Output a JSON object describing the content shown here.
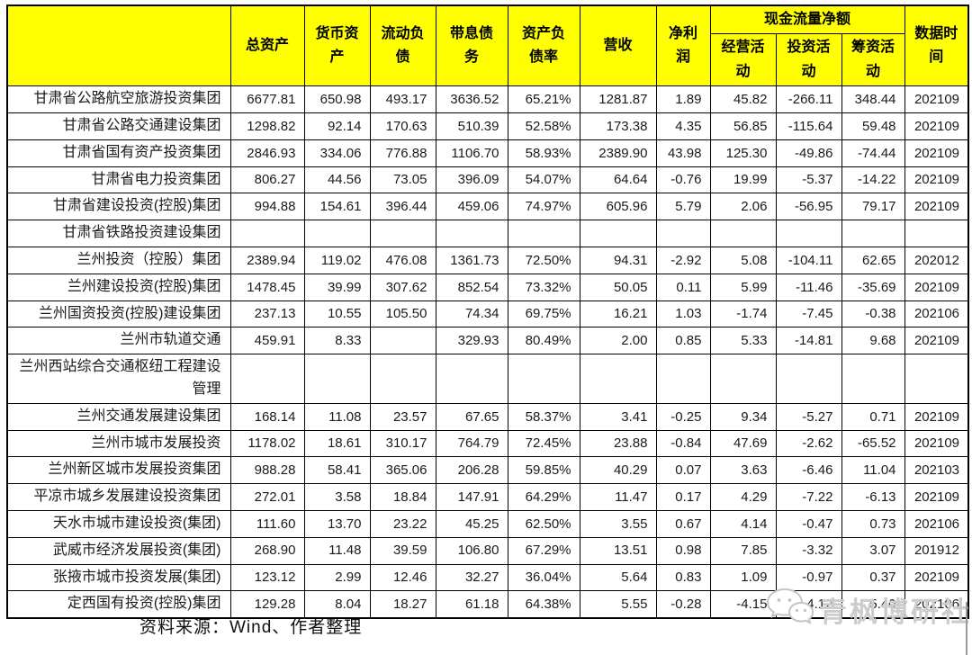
{
  "table": {
    "header": {
      "corner": "",
      "cols": [
        "总资产",
        "货币资产",
        "流动负债",
        "带息债务",
        "资产负债率",
        "营收",
        "净利润"
      ],
      "cash_flow_group": "现金流量净额",
      "cash_flow_cols": [
        "经营活动",
        "投资活动",
        "筹资活动"
      ],
      "date_col": "数据时间"
    },
    "rows": [
      {
        "name": "甘肃省公路航空旅游投资集团",
        "values": [
          "6677.81",
          "650.98",
          "493.17",
          "3636.52",
          "65.21%",
          "1281.87",
          "1.89",
          "45.82",
          "-266.11",
          "348.44",
          "202109"
        ]
      },
      {
        "name": "甘肃省公路交通建设集团",
        "values": [
          "1298.82",
          "92.14",
          "170.63",
          "510.39",
          "52.58%",
          "173.38",
          "4.35",
          "56.85",
          "-115.64",
          "59.48",
          "202109"
        ]
      },
      {
        "name": "甘肃省国有资产投资集团",
        "values": [
          "2846.93",
          "334.06",
          "776.88",
          "1106.70",
          "58.93%",
          "2389.90",
          "43.98",
          "125.30",
          "-49.86",
          "-74.44",
          "202109"
        ]
      },
      {
        "name": "甘肃省电力投资集团",
        "values": [
          "806.27",
          "44.56",
          "73.05",
          "396.09",
          "54.07%",
          "64.64",
          "-0.76",
          "19.99",
          "-5.37",
          "-14.22",
          "202109"
        ]
      },
      {
        "name": "甘肃省建设投资(控股)集团",
        "values": [
          "994.88",
          "154.61",
          "396.44",
          "459.06",
          "74.97%",
          "605.96",
          "5.79",
          "2.06",
          "-56.95",
          "79.17",
          "202109"
        ]
      },
      {
        "name": "甘肃省铁路投资建设集团",
        "values": [
          "",
          "",
          "",
          "",
          "",
          "",
          "",
          "",
          "",
          "",
          ""
        ]
      },
      {
        "name": "兰州投资（控股）集团",
        "values": [
          "2389.94",
          "119.02",
          "476.08",
          "1361.73",
          "72.50%",
          "94.31",
          "-2.92",
          "5.08",
          "-104.11",
          "62.65",
          "202012"
        ]
      },
      {
        "name": "兰州建设投资(控股)集团",
        "values": [
          "1478.45",
          "39.99",
          "307.62",
          "852.54",
          "73.32%",
          "50.05",
          "0.11",
          "5.99",
          "-11.46",
          "-35.69",
          "202109"
        ]
      },
      {
        "name": "兰州国资投资(控股)建设集团",
        "values": [
          "237.13",
          "10.55",
          "105.50",
          "74.34",
          "69.75%",
          "16.21",
          "1.03",
          "-1.74",
          "-7.45",
          "-0.38",
          "202106"
        ]
      },
      {
        "name": "兰州市轨道交通",
        "values": [
          "459.91",
          "8.33",
          "",
          "329.93",
          "80.49%",
          "2.00",
          "0.85",
          "5.33",
          "-14.81",
          "9.68",
          "202109"
        ]
      },
      {
        "name": "兰州西站综合交通枢纽工程建设管理",
        "values": [
          "",
          "",
          "",
          "",
          "",
          "",
          "",
          "",
          "",
          "",
          ""
        ]
      },
      {
        "name": "兰州交通发展建设集团",
        "values": [
          "168.14",
          "11.08",
          "23.57",
          "67.65",
          "58.37%",
          "3.41",
          "-0.25",
          "9.34",
          "-5.27",
          "0.71",
          "202109"
        ]
      },
      {
        "name": "兰州市城市发展投资",
        "values": [
          "1178.02",
          "18.61",
          "310.17",
          "764.79",
          "72.45%",
          "23.88",
          "-0.84",
          "47.69",
          "-2.62",
          "-65.52",
          "202109"
        ]
      },
      {
        "name": "兰州新区城市发展投资集团",
        "values": [
          "988.28",
          "58.41",
          "365.06",
          "206.28",
          "59.85%",
          "40.29",
          "0.07",
          "3.63",
          "-6.46",
          "11.04",
          "202103"
        ]
      },
      {
        "name": "平凉市城乡发展建设投资集团",
        "values": [
          "272.01",
          "3.58",
          "18.84",
          "147.91",
          "64.29%",
          "11.47",
          "0.17",
          "4.29",
          "-7.22",
          "-6.13",
          "202109"
        ]
      },
      {
        "name": "天水市城市建设投资(集团)",
        "values": [
          "111.60",
          "13.70",
          "23.22",
          "45.25",
          "62.50%",
          "3.55",
          "0.67",
          "4.14",
          "-0.47",
          "0.73",
          "202106"
        ]
      },
      {
        "name": "武威市经济发展投资(集团)",
        "values": [
          "268.90",
          "11.48",
          "39.59",
          "106.80",
          "67.29%",
          "13.51",
          "0.98",
          "7.85",
          "-3.32",
          "3.07",
          "201912"
        ]
      },
      {
        "name": "张掖市城市投资发展(集团)",
        "values": [
          "123.12",
          "2.99",
          "12.46",
          "32.27",
          "36.04%",
          "5.64",
          "0.83",
          "1.09",
          "-0.97",
          "0.37",
          "202109"
        ]
      },
      {
        "name": "定西国有投资(控股)集团",
        "values": [
          "129.28",
          "8.04",
          "18.27",
          "61.18",
          "64.38%",
          "5.55",
          "-0.28",
          "-4.15",
          "-4.12",
          "5.40",
          "202106"
        ]
      }
    ]
  },
  "footer": {
    "source": "资料来源：Wind、作者整理"
  },
  "watermark": {
    "text": "青枫博研社"
  },
  "colors": {
    "header_bg": "#ffff00",
    "border": "#000000",
    "watermark": "#cccccc"
  }
}
